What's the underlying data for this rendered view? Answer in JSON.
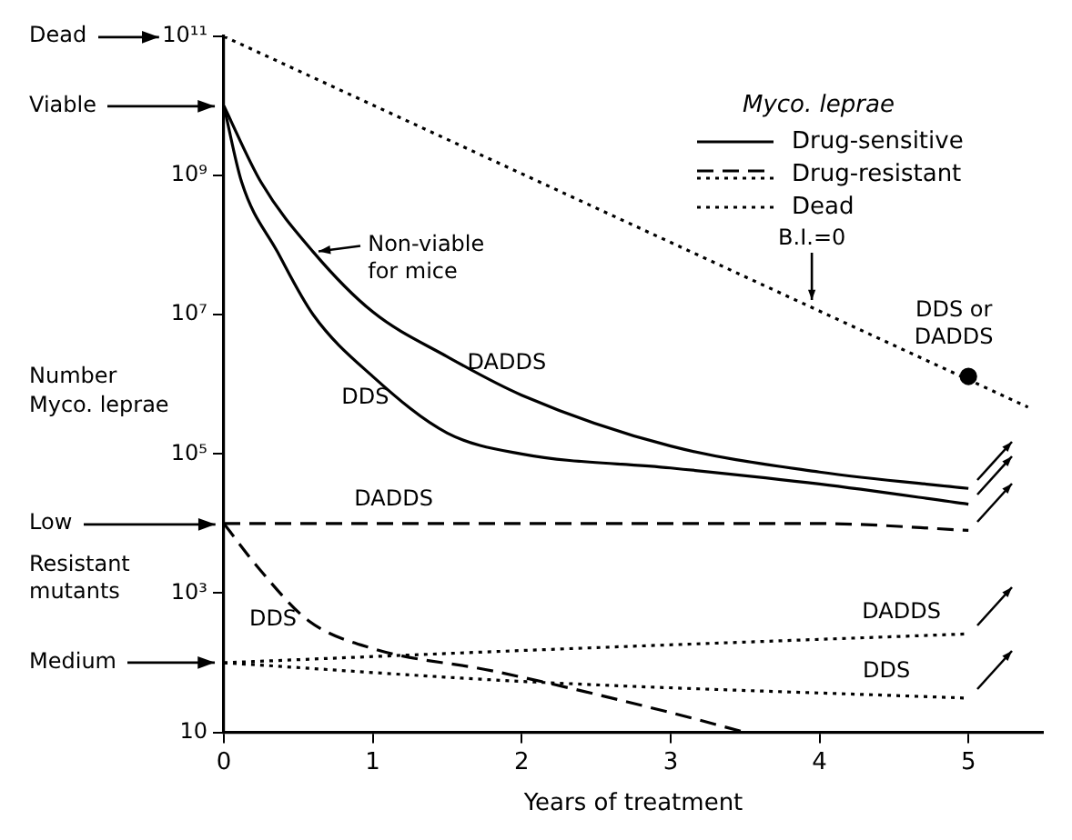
{
  "chart_data": {
    "type": "line",
    "xlabel": "Years of treatment",
    "ylabel": "Number Myco. leprae",
    "legend_title": "Myco. leprae",
    "legend": "top right",
    "log": "y",
    "grid": false,
    "marker": "none",
    "xlim": [
      0,
      5.5
    ],
    "xticks": [
      0,
      1,
      2,
      3,
      4,
      5
    ],
    "ylim": [
      10,
      100000000000
    ],
    "yticks": [
      {
        "value": 10,
        "label": "10"
      },
      {
        "value": 1000,
        "label": "10³"
      },
      {
        "value": 100000,
        "label": "10⁵"
      },
      {
        "value": 10000000,
        "label": "10⁷"
      },
      {
        "value": 1000000000,
        "label": "10⁹"
      },
      {
        "value": 100000000000,
        "label": "10¹¹"
      }
    ],
    "series": [
      {
        "name": "DADDS",
        "color": "#000000",
        "line_style": "solid",
        "x": [
          0,
          0.25,
          0.6,
          1,
          1.5,
          2,
          3,
          4,
          5
        ],
        "values": [
          10000000000,
          800000000,
          80000000,
          11000000,
          2500000,
          700000,
          130000,
          55000,
          32000
        ]
      },
      {
        "name": "DDS",
        "color": "#000000",
        "line_style": "solid",
        "x": [
          0,
          0.12,
          0.36,
          0.6,
          1,
          1.5,
          2,
          3,
          4,
          5
        ],
        "values": [
          10000000000,
          800000000,
          80000000,
          10000000,
          1300000,
          200000,
          100000,
          63000,
          37000,
          19000
        ]
      },
      {
        "name": "DADDS",
        "color": "#000000",
        "line_style": "dashed",
        "x": [
          0,
          4,
          5
        ],
        "values": [
          10000,
          10000,
          8000
        ]
      },
      {
        "name": "DDS",
        "color": "#000000",
        "line_style": "dashed",
        "x": [
          0,
          0.24,
          0.57,
          1,
          1.81,
          3.01,
          3.5
        ],
        "values": [
          10000,
          2200,
          400,
          160,
          76,
          19,
          10
        ]
      },
      {
        "name": "DADDS",
        "color": "#000000",
        "line_style": "dotted",
        "x": [
          0,
          2,
          5
        ],
        "values": [
          100,
          150,
          260
        ]
      },
      {
        "name": "DDS",
        "color": "#000000",
        "line_style": "dotted",
        "x": [
          0,
          2,
          5
        ],
        "values": [
          100,
          54,
          31
        ]
      },
      {
        "name": "Dead",
        "color": "#000000",
        "line_style": "dotted",
        "x": [
          0,
          5.4
        ],
        "values": [
          100000000000,
          470000
        ]
      },
      {
        "type": "scatter",
        "color": "#000000",
        "marker": "circle",
        "x": [
          5
        ],
        "values": [
          1300000
        ]
      }
    ],
    "annotations": [
      "Dead",
      "Viable",
      "Low",
      "Medium",
      "Resistant mutants",
      {
        "text": "Non-viable for mice",
        "x": 0.6,
        "y": 80000000
      },
      "B.I.=0",
      {
        "text": "DDS or DADDS",
        "x": 5,
        "y": 1300000
      },
      "Drug-sensitive",
      "Drug-resistant"
    ]
  }
}
